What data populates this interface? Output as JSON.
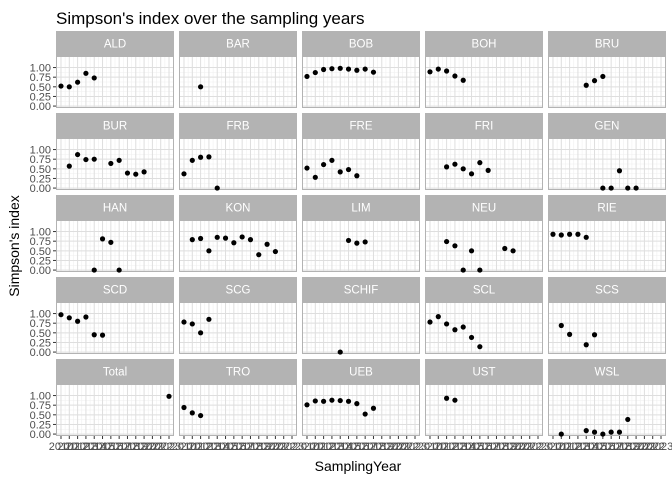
{
  "chart_data": {
    "type": "scatter",
    "title": "Simpson's index over the sampling years",
    "xlabel": "SamplingYear",
    "ylabel": "Simpson's index",
    "facet_layout": "5 columns x 5 rows",
    "x_domain": [
      2010,
      2023
    ],
    "xlim": [
      2009.4,
      2023.6
    ],
    "ylim": [
      -0.05,
      1.3
    ],
    "y_ticks": [
      0.0,
      0.25,
      0.5,
      0.75,
      1.0
    ],
    "y_tick_labels": [
      "0.00",
      "0.25",
      "0.50",
      "0.75",
      "1.00"
    ],
    "x_tick_labels": [
      "2010",
      "2011",
      "2012",
      "2013",
      "2014",
      "2015",
      "2016",
      "2017",
      "2018",
      "2019",
      "2020",
      "2021",
      "2022",
      "2023"
    ],
    "colors": {
      "strip_background": "#b3b3b3",
      "strip_text": "#ffffff",
      "panel_border": "#b3b3b3",
      "grid_major": "#dedede",
      "grid_minor": "#efefef",
      "point": "#000000"
    },
    "grid": true,
    "legend": "none",
    "panels": [
      {
        "name": "ALD",
        "points": [
          [
            2010,
            0.52
          ],
          [
            2011,
            0.5
          ],
          [
            2012,
            0.62
          ],
          [
            2013,
            0.85
          ],
          [
            2014,
            0.73
          ]
        ]
      },
      {
        "name": "BAR",
        "points": [
          [
            2012,
            0.5
          ]
        ]
      },
      {
        "name": "BOB",
        "points": [
          [
            2010,
            0.77
          ],
          [
            2011,
            0.87
          ],
          [
            2012,
            0.95
          ],
          [
            2013,
            0.97
          ],
          [
            2014,
            0.98
          ],
          [
            2015,
            0.96
          ],
          [
            2016,
            0.93
          ],
          [
            2017,
            0.96
          ],
          [
            2018,
            0.88
          ]
        ]
      },
      {
        "name": "BOH",
        "points": [
          [
            2010,
            0.89
          ],
          [
            2011,
            0.96
          ],
          [
            2012,
            0.91
          ],
          [
            2013,
            0.78
          ],
          [
            2014,
            0.67
          ]
        ]
      },
      {
        "name": "BRU",
        "points": [
          [
            2014,
            0.54
          ],
          [
            2015,
            0.66
          ],
          [
            2016,
            0.77
          ]
        ]
      },
      {
        "name": "BUR",
        "points": [
          [
            2011,
            0.57
          ],
          [
            2012,
            0.87
          ],
          [
            2013,
            0.74
          ],
          [
            2014,
            0.75
          ],
          [
            2016,
            0.64
          ],
          [
            2017,
            0.72
          ],
          [
            2018,
            0.39
          ],
          [
            2019,
            0.36
          ],
          [
            2020,
            0.42
          ]
        ]
      },
      {
        "name": "FRB",
        "points": [
          [
            2010,
            0.37
          ],
          [
            2011,
            0.72
          ],
          [
            2012,
            0.8
          ],
          [
            2013,
            0.81
          ],
          [
            2014,
            0.0
          ]
        ]
      },
      {
        "name": "FRE",
        "points": [
          [
            2010,
            0.52
          ],
          [
            2011,
            0.28
          ],
          [
            2012,
            0.61
          ],
          [
            2013,
            0.72
          ],
          [
            2014,
            0.42
          ],
          [
            2015,
            0.48
          ],
          [
            2016,
            0.32
          ]
        ]
      },
      {
        "name": "FRI",
        "points": [
          [
            2012,
            0.55
          ],
          [
            2013,
            0.62
          ],
          [
            2014,
            0.5
          ],
          [
            2015,
            0.37
          ],
          [
            2016,
            0.66
          ],
          [
            2017,
            0.46
          ]
        ]
      },
      {
        "name": "GEN",
        "points": [
          [
            2016,
            0.0
          ],
          [
            2017,
            0.0
          ],
          [
            2018,
            0.45
          ],
          [
            2019,
            0.0
          ],
          [
            2020,
            0.0
          ]
        ]
      },
      {
        "name": "HAN",
        "points": [
          [
            2014,
            0.0
          ],
          [
            2015,
            0.81
          ],
          [
            2016,
            0.72
          ],
          [
            2017,
            0.0
          ]
        ]
      },
      {
        "name": "KON",
        "points": [
          [
            2011,
            0.79
          ],
          [
            2012,
            0.82
          ],
          [
            2013,
            0.5
          ],
          [
            2014,
            0.85
          ],
          [
            2015,
            0.83
          ],
          [
            2016,
            0.71
          ],
          [
            2017,
            0.86
          ],
          [
            2018,
            0.79
          ],
          [
            2019,
            0.4
          ],
          [
            2020,
            0.67
          ],
          [
            2021,
            0.48
          ]
        ]
      },
      {
        "name": "LIM",
        "points": [
          [
            2015,
            0.77
          ],
          [
            2016,
            0.7
          ],
          [
            2017,
            0.73
          ]
        ]
      },
      {
        "name": "NEU",
        "points": [
          [
            2012,
            0.74
          ],
          [
            2013,
            0.63
          ],
          [
            2014,
            0.0
          ],
          [
            2015,
            0.5
          ],
          [
            2016,
            0.0
          ],
          [
            2019,
            0.56
          ],
          [
            2020,
            0.5
          ]
        ]
      },
      {
        "name": "RIE",
        "points": [
          [
            2010,
            0.93
          ],
          [
            2011,
            0.91
          ],
          [
            2012,
            0.93
          ],
          [
            2013,
            0.93
          ],
          [
            2014,
            0.85
          ]
        ]
      },
      {
        "name": "SCD",
        "points": [
          [
            2010,
            0.97
          ],
          [
            2011,
            0.89
          ],
          [
            2012,
            0.8
          ],
          [
            2013,
            0.91
          ],
          [
            2014,
            0.45
          ],
          [
            2015,
            0.44
          ]
        ]
      },
      {
        "name": "SCG",
        "points": [
          [
            2010,
            0.78
          ],
          [
            2011,
            0.73
          ],
          [
            2012,
            0.5
          ],
          [
            2013,
            0.85
          ]
        ]
      },
      {
        "name": "SCHIF",
        "points": [
          [
            2014,
            0.0
          ]
        ]
      },
      {
        "name": "SCL",
        "points": [
          [
            2010,
            0.78
          ],
          [
            2011,
            0.92
          ],
          [
            2012,
            0.73
          ],
          [
            2013,
            0.58
          ],
          [
            2014,
            0.65
          ],
          [
            2015,
            0.38
          ],
          [
            2016,
            0.14
          ]
        ]
      },
      {
        "name": "SCS",
        "points": [
          [
            2011,
            0.69
          ],
          [
            2012,
            0.46
          ],
          [
            2014,
            0.19
          ],
          [
            2015,
            0.45
          ]
        ]
      },
      {
        "name": "Total",
        "points": [
          [
            2023,
            0.98
          ]
        ]
      },
      {
        "name": "TRO",
        "points": [
          [
            2010,
            0.69
          ],
          [
            2011,
            0.55
          ],
          [
            2012,
            0.48
          ]
        ]
      },
      {
        "name": "UEB",
        "points": [
          [
            2010,
            0.76
          ],
          [
            2011,
            0.86
          ],
          [
            2012,
            0.85
          ],
          [
            2013,
            0.88
          ],
          [
            2014,
            0.87
          ],
          [
            2015,
            0.85
          ],
          [
            2016,
            0.79
          ],
          [
            2017,
            0.52
          ],
          [
            2018,
            0.67
          ]
        ]
      },
      {
        "name": "UST",
        "points": [
          [
            2012,
            0.93
          ],
          [
            2013,
            0.88
          ]
        ]
      },
      {
        "name": "WSL",
        "points": [
          [
            2011,
            0.0
          ],
          [
            2014,
            0.09
          ],
          [
            2015,
            0.05
          ],
          [
            2016,
            0.0
          ],
          [
            2017,
            0.05
          ],
          [
            2018,
            0.05
          ],
          [
            2019,
            0.38
          ]
        ]
      }
    ]
  }
}
